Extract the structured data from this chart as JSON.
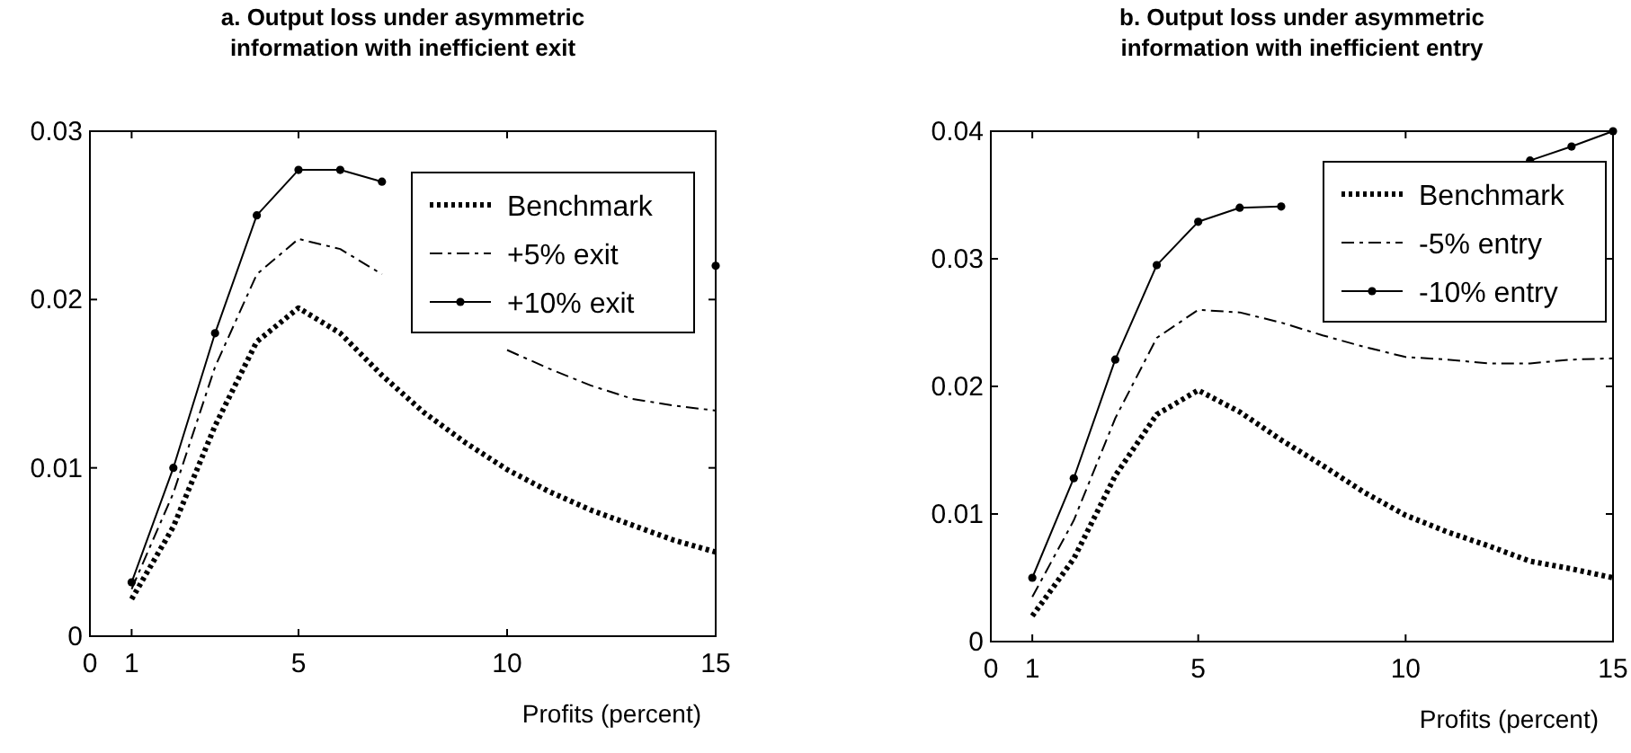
{
  "chart_data": [
    {
      "type": "line",
      "title": "a. Output loss under asymmetric information with inefficient exit",
      "xlabel": "Profits (percent)",
      "x": [
        1,
        2,
        3,
        4,
        5,
        6,
        7,
        8,
        9,
        10,
        11,
        12,
        13,
        14,
        15
      ],
      "xlim": [
        0,
        15
      ],
      "xticks": [
        0,
        1,
        5,
        10,
        15
      ],
      "ylim": [
        0,
        0.03
      ],
      "yticks": [
        0,
        0.01,
        0.02,
        0.03
      ],
      "grid": false,
      "legend": "top right",
      "series": [
        {
          "name": "Benchmark",
          "color": "#000000",
          "line_style": "dotted",
          "marker": "none",
          "values": [
            0.0022,
            0.0065,
            0.0125,
            0.0175,
            0.0195,
            0.018,
            0.0155,
            0.0133,
            0.0115,
            0.0099,
            0.0086,
            0.0075,
            0.0066,
            0.0057,
            0.005
          ]
        },
        {
          "name": "+5% exit",
          "color": "#000000",
          "line_style": "dashdot",
          "marker": "none",
          "values": [
            0.0028,
            0.0085,
            0.016,
            0.0215,
            0.0236,
            0.023,
            0.0215,
            null,
            null,
            0.017,
            0.0159,
            0.0149,
            0.0141,
            0.0137,
            0.0134
          ]
        },
        {
          "name": "+10% exit",
          "color": "#000000",
          "line_style": "solid",
          "marker": "circle",
          "values": [
            0.0032,
            0.01,
            0.018,
            0.025,
            0.0277,
            0.0277,
            0.027,
            null,
            null,
            null,
            null,
            null,
            null,
            null,
            0.022
          ]
        }
      ]
    },
    {
      "type": "line",
      "title": "b. Output loss under asymmetric information with inefficient entry",
      "xlabel": "Profits (percent)",
      "x": [
        1,
        2,
        3,
        4,
        5,
        6,
        7,
        8,
        9,
        10,
        11,
        12,
        13,
        14,
        15
      ],
      "xlim": [
        0,
        15
      ],
      "xticks": [
        0,
        1,
        5,
        10,
        15
      ],
      "ylim": [
        0,
        0.04
      ],
      "yticks": [
        0,
        0.01,
        0.02,
        0.03,
        0.04
      ],
      "grid": false,
      "legend": "top right",
      "series": [
        {
          "name": "Benchmark",
          "color": "#000000",
          "line_style": "dotted",
          "marker": "none",
          "values": [
            0.002,
            0.0065,
            0.013,
            0.0178,
            0.0197,
            0.018,
            0.0158,
            0.0138,
            0.0117,
            0.0099,
            0.0086,
            0.0075,
            0.0063,
            0.0057,
            0.005
          ]
        },
        {
          "name": "-5% entry",
          "color": "#000000",
          "line_style": "dashdot",
          "marker": "none",
          "values": [
            0.0035,
            0.0095,
            0.0175,
            0.0238,
            0.026,
            0.0258,
            0.025,
            0.024,
            0.0231,
            0.0223,
            0.0221,
            0.0218,
            0.0218,
            0.0221,
            0.0222
          ]
        },
        {
          "name": "-10% entry",
          "color": "#000000",
          "line_style": "solid",
          "marker": "circle",
          "values": [
            0.005,
            0.0128,
            0.0221,
            0.0295,
            0.0329,
            0.034,
            0.0341,
            null,
            null,
            null,
            null,
            null,
            0.0377,
            0.0388,
            0.04
          ]
        }
      ]
    }
  ]
}
